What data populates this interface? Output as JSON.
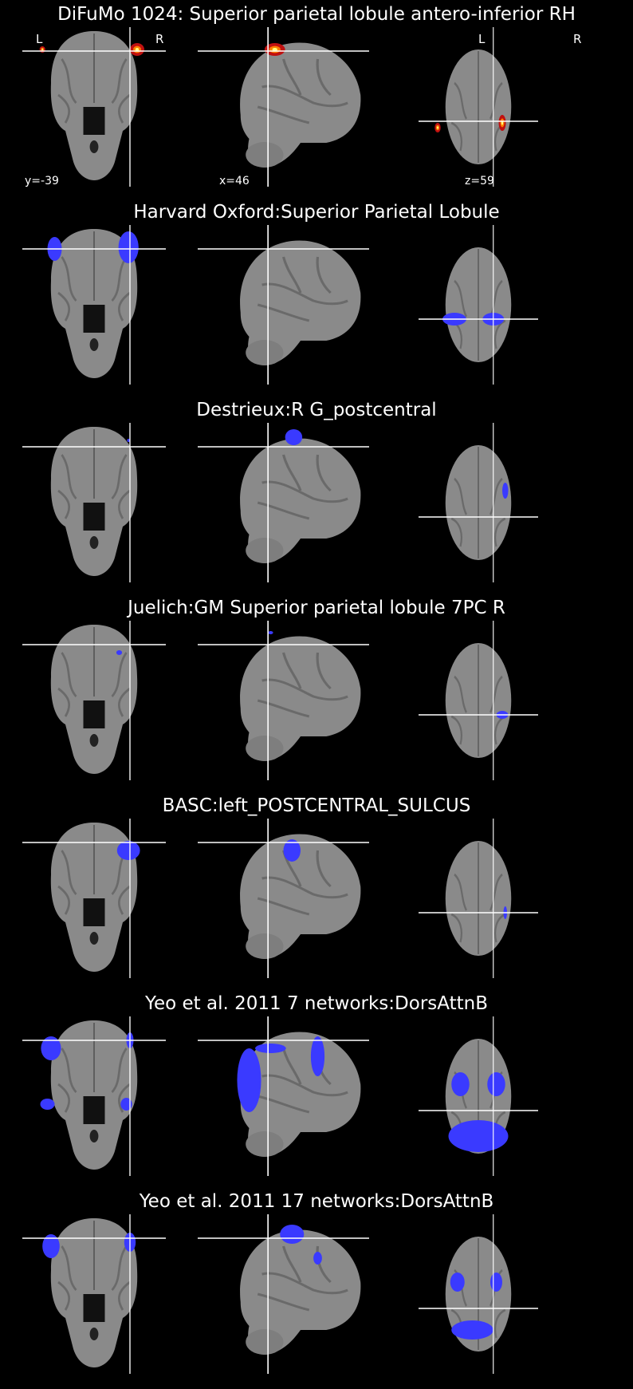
{
  "panels": [
    {
      "title": "DiFuMo 1024: Superior parietal lobule antero-inferior RH",
      "overlay": "heat"
    },
    {
      "title": "Harvard Oxford:Superior Parietal Lobule",
      "overlay": "blue"
    },
    {
      "title": "Destrieux:R G_postcentral",
      "overlay": "blue"
    },
    {
      "title": "Juelich:GM Superior parietal lobule 7PC R",
      "overlay": "blue"
    },
    {
      "title": "BASC:left_POSTCENTRAL_SULCUS",
      "overlay": "blue"
    },
    {
      "title": "Yeo et al. 2011 7 networks:DorsAttnB",
      "overlay": "blue"
    },
    {
      "title": "Yeo et al. 2011 17 networks:DorsAttnB",
      "overlay": "blue"
    }
  ],
  "orientation": {
    "left": "L",
    "right": "R"
  },
  "coords": {
    "y": "y=-39",
    "x": "x=46",
    "z": "z=59"
  },
  "colors": {
    "background": "#000000",
    "brain": "#8a8a8a",
    "crosshair": "#ffffff",
    "atlas": "#3a3aff",
    "heat_outer": "#c01010",
    "heat_inner": "#ffff80"
  }
}
